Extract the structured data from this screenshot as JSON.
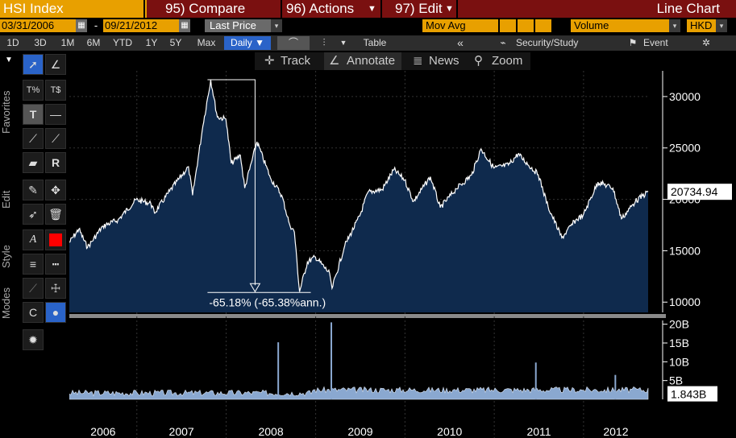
{
  "toolbar": {
    "ticker": "HSI Index",
    "compare": "95) Compare",
    "actions": "96) Actions",
    "edit": "97) Edit",
    "chart_type": "Line Chart",
    "start_date": "03/31/2006",
    "end_date": "09/21/2012",
    "price_field": "Last Price",
    "mov_avg": "Mov Avg",
    "volume": "Volume",
    "currency": "HKD"
  },
  "periods": [
    "1D",
    "3D",
    "1M",
    "6M",
    "YTD",
    "1Y",
    "5Y",
    "Max"
  ],
  "frequency": "Daily",
  "table_label": "Table",
  "security_study": "Security/Study",
  "event_label": "Event",
  "subtools": {
    "track": "Track",
    "annotate": "Annotate",
    "news": "News",
    "zoom": "Zoom"
  },
  "side_labels": {
    "favorites": "Favorites",
    "edit": "Edit",
    "style": "Style",
    "modes": "Modes"
  },
  "colors": {
    "area": "#0f2a4d",
    "line": "#ffffff",
    "volume": "#8aa8d0",
    "accent": "#e8a000",
    "bar": "#7a1010",
    "red_swatch": "#ff0000"
  },
  "chart_data": {
    "type": "area",
    "title": "HSI Index",
    "x_ticks": [
      "2006",
      "2007",
      "2008",
      "2009",
      "2010",
      "2011",
      "2012"
    ],
    "y_ticks": [
      10000,
      15000,
      20000,
      25000,
      30000
    ],
    "ylim": [
      9000,
      32500
    ],
    "xlim": [
      "2006-03-31",
      "2012-09-21"
    ],
    "last_value_label": "20734.94",
    "grid": true,
    "annotation": {
      "text": "-65.18% (-65.38%ann.)",
      "from": {
        "date": "2007-10-30",
        "value": 31638
      },
      "to": {
        "date": "2008-10-27",
        "value": 11015
      }
    },
    "series": [
      {
        "x": [
          "2006-03-31",
          "2006-05-09",
          "2006-06-13",
          "2006-08-15",
          "2006-10-16",
          "2006-12-29",
          "2007-02-27",
          "2007-03-14",
          "2007-05-15",
          "2007-07-31",
          "2007-08-17",
          "2007-09-28",
          "2007-10-30",
          "2007-11-26",
          "2007-12-31",
          "2008-01-22",
          "2008-02-28",
          "2008-03-17",
          "2008-05-06",
          "2008-06-30",
          "2008-08-15",
          "2008-09-16",
          "2008-10-06",
          "2008-10-27",
          "2008-11-28",
          "2008-12-31",
          "2009-02-27",
          "2009-03-09",
          "2009-04-30",
          "2009-06-30",
          "2009-08-03",
          "2009-09-30",
          "2009-11-17",
          "2009-12-31",
          "2010-02-05",
          "2010-04-15",
          "2010-05-25",
          "2010-07-30",
          "2010-09-30",
          "2010-11-08",
          "2010-12-31",
          "2011-02-28",
          "2011-04-08",
          "2011-06-30",
          "2011-08-09",
          "2011-10-04",
          "2011-11-30",
          "2011-12-30",
          "2012-02-29",
          "2012-04-30",
          "2012-06-04",
          "2012-07-31",
          "2012-09-21"
        ],
        "values": [
          15805,
          17100,
          15300,
          17400,
          18000,
          19965,
          19600,
          18660,
          20800,
          23180,
          20400,
          27142,
          31638,
          28000,
          27813,
          23500,
          24300,
          21100,
          25600,
          22100,
          20400,
          17600,
          16800,
          11015,
          13900,
          14387,
          12800,
          11345,
          15500,
          18379,
          20700,
          20955,
          22900,
          21873,
          19800,
          22200,
          19200,
          21029,
          22359,
          24900,
          23035,
          23338,
          24400,
          22398,
          19300,
          16250,
          17990,
          18434,
          21680,
          21094,
          18100,
          19800,
          20735
        ]
      }
    ],
    "volume": {
      "name": "Volume",
      "ticks": [
        "5B",
        "10B",
        "15B",
        "20B"
      ],
      "ylim_billions": [
        0,
        21
      ],
      "last_value_label": "1.843B",
      "baseline_billions": 1.5,
      "spikes": [
        {
          "date": "2008-08-01",
          "value_billions": 15.2
        },
        {
          "date": "2009-03-06",
          "value_billions": 20.5
        },
        {
          "date": "2011-06-20",
          "value_billions": 9.8
        },
        {
          "date": "2012-05-10",
          "value_billions": 6.5
        }
      ]
    }
  }
}
